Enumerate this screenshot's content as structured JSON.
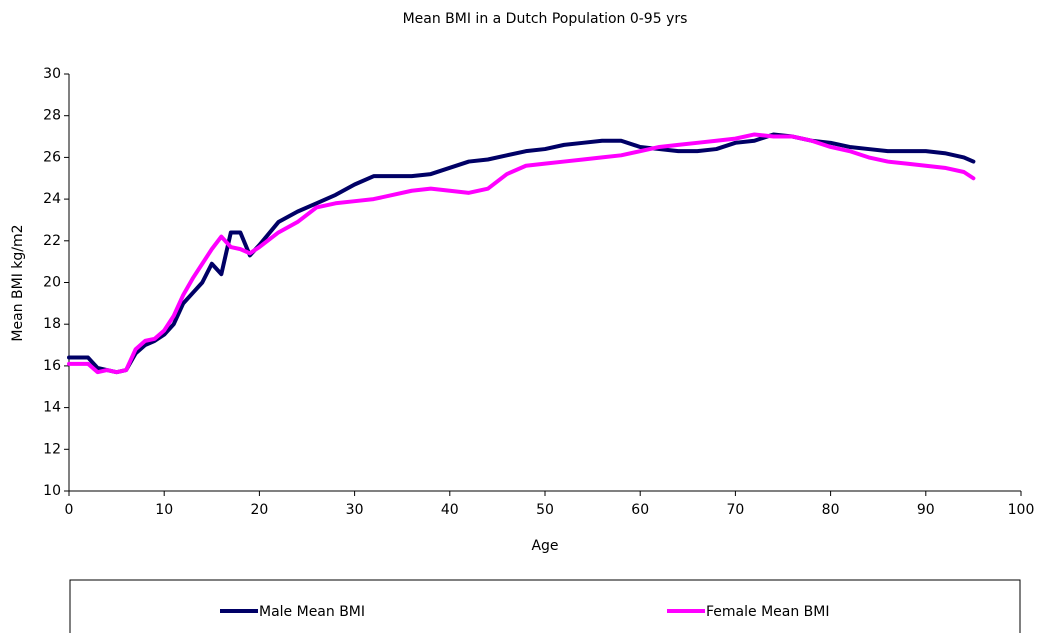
{
  "chart_data": {
    "type": "line",
    "title": "Mean BMI in a Dutch Population 0-95 yrs",
    "x_label": "Age",
    "y_label": "Mean BMI kg/m2",
    "x": [
      0,
      1,
      2,
      3,
      4,
      5,
      6,
      7,
      8,
      9,
      10,
      11,
      12,
      13,
      14,
      15,
      16,
      17,
      18,
      19,
      20,
      22,
      24,
      26,
      28,
      30,
      32,
      34,
      36,
      38,
      40,
      42,
      44,
      46,
      48,
      50,
      52,
      54,
      56,
      58,
      60,
      62,
      64,
      66,
      68,
      70,
      72,
      74,
      76,
      78,
      80,
      82,
      84,
      86,
      88,
      90,
      92,
      94,
      95
    ],
    "series": [
      {
        "name": "Male Mean BMI",
        "color": "#000066",
        "values": [
          16.4,
          16.4,
          16.4,
          15.9,
          15.8,
          15.7,
          15.8,
          16.6,
          17.0,
          17.2,
          17.5,
          18.0,
          19.0,
          19.5,
          20.0,
          20.9,
          20.4,
          22.4,
          22.4,
          21.3,
          21.8,
          22.9,
          23.4,
          23.8,
          24.2,
          24.7,
          25.1,
          25.1,
          25.1,
          25.2,
          25.5,
          25.8,
          25.9,
          26.1,
          26.3,
          26.4,
          26.6,
          26.7,
          26.8,
          26.8,
          26.5,
          26.4,
          26.3,
          26.3,
          26.4,
          26.7,
          26.8,
          27.1,
          27.0,
          26.8,
          26.7,
          26.5,
          26.4,
          26.3,
          26.3,
          26.3,
          26.2,
          26.0,
          25.8
        ]
      },
      {
        "name": "Female Mean BMI",
        "color": "#ff00ff",
        "values": [
          16.1,
          16.1,
          16.1,
          15.7,
          15.8,
          15.7,
          15.8,
          16.8,
          17.2,
          17.3,
          17.7,
          18.4,
          19.4,
          20.2,
          20.9,
          21.6,
          22.2,
          21.7,
          21.6,
          21.4,
          21.7,
          22.4,
          22.9,
          23.6,
          23.8,
          23.9,
          24.0,
          24.2,
          24.4,
          24.5,
          24.4,
          24.3,
          24.5,
          25.2,
          25.6,
          25.7,
          25.8,
          25.9,
          26.0,
          26.1,
          26.3,
          26.5,
          26.6,
          26.7,
          26.8,
          26.9,
          27.1,
          27.0,
          27.0,
          26.8,
          26.5,
          26.3,
          26.0,
          25.8,
          25.7,
          25.6,
          25.5,
          25.3,
          25.0
        ]
      }
    ],
    "xlim": [
      0,
      100
    ],
    "xticks": [
      0,
      10,
      20,
      30,
      40,
      50,
      60,
      70,
      80,
      90,
      100
    ],
    "ylim": [
      10,
      30
    ],
    "yticks": [
      10,
      12,
      14,
      16,
      18,
      20,
      22,
      24,
      26,
      28,
      30
    ],
    "grid": false,
    "legend": "bottom"
  }
}
